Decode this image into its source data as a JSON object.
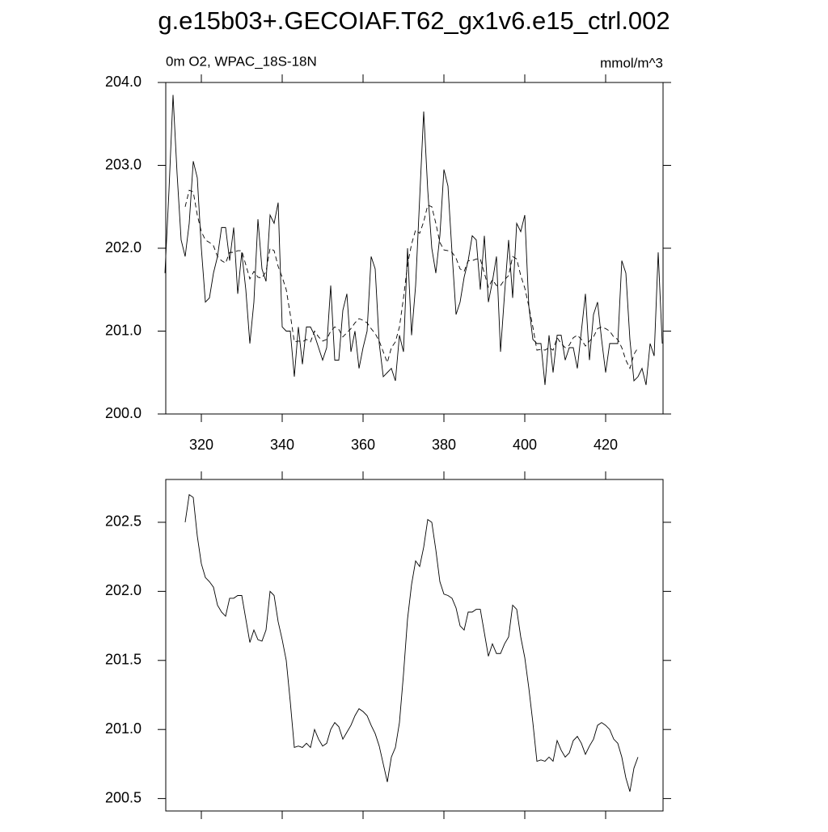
{
  "chart_data": [
    {
      "type": "line",
      "title": "g.e15b03+.GECOIAF.T62_gx1v6.e15_ctrl.002",
      "subtitle_left": "0m O2, WPAC_18S-18N",
      "subtitle_right": "mmol/m^3",
      "xlim": [
        311.2,
        434.2
      ],
      "xticks": [
        320,
        340,
        360,
        380,
        400,
        420
      ],
      "xtick_labels": true,
      "ylim": [
        200,
        204
      ],
      "yticks": [
        {
          "value": 200,
          "label": "200.0"
        },
        {
          "value": 201,
          "label": "201.0"
        },
        {
          "value": 202,
          "label": "202.0"
        },
        {
          "value": 203,
          "label": "203.0"
        },
        {
          "value": 204,
          "label": "204.0"
        }
      ],
      "series": [
        {
          "color": "#000000",
          "linestyle": "solid",
          "x": [
            311,
            312,
            313,
            314,
            315,
            316,
            317,
            318,
            319,
            320,
            321,
            322,
            323,
            324,
            325,
            326,
            327,
            328,
            329,
            330,
            331,
            332,
            333,
            334,
            335,
            336,
            337,
            338,
            339,
            340,
            341,
            342,
            343,
            344,
            345,
            346,
            347,
            348,
            349,
            350,
            351,
            352,
            353,
            354,
            355,
            356,
            357,
            358,
            359,
            360,
            361,
            362,
            363,
            364,
            365,
            366,
            367,
            368,
            369,
            370,
            371,
            372,
            373,
            374,
            375,
            376,
            377,
            378,
            379,
            380,
            381,
            382,
            383,
            384,
            385,
            386,
            387,
            388,
            389,
            390,
            391,
            392,
            393,
            394,
            395,
            396,
            397,
            398,
            399,
            400,
            401,
            402,
            403,
            404,
            405,
            406,
            407,
            408,
            409,
            410,
            411,
            412,
            413,
            414,
            415,
            416,
            417,
            418,
            419,
            420,
            421,
            422,
            423,
            424,
            425,
            426,
            427,
            428,
            429,
            430,
            431,
            432,
            433,
            434
          ],
          "values": [
            201.7,
            202.7,
            203.85,
            202.9,
            202.1,
            201.9,
            202.3,
            203.05,
            202.85,
            202.0,
            201.35,
            201.4,
            201.7,
            201.9,
            202.25,
            202.25,
            201.85,
            202.25,
            201.45,
            201.95,
            201.5,
            200.85,
            201.35,
            202.35,
            201.75,
            201.6,
            202.4,
            202.3,
            202.55,
            201.05,
            201.0,
            201.0,
            200.45,
            201.05,
            200.6,
            201.05,
            201.05,
            200.95,
            200.8,
            200.65,
            200.8,
            201.55,
            200.65,
            200.65,
            201.25,
            201.45,
            200.75,
            201.0,
            200.55,
            200.8,
            201.0,
            201.9,
            201.75,
            200.85,
            200.45,
            200.5,
            200.55,
            200.4,
            200.95,
            200.75,
            202.0,
            200.95,
            201.55,
            202.6,
            203.65,
            202.7,
            202.0,
            201.7,
            202.15,
            202.95,
            202.75,
            201.95,
            201.2,
            201.35,
            201.65,
            201.85,
            202.15,
            202.1,
            201.5,
            202.15,
            201.35,
            201.6,
            201.9,
            200.75,
            201.45,
            202.1,
            201.4,
            202.3,
            202.2,
            202.4,
            201.3,
            200.9,
            200.85,
            200.85,
            200.35,
            200.95,
            200.5,
            200.95,
            200.95,
            200.65,
            200.8,
            200.8,
            200.55,
            201.0,
            201.45,
            200.65,
            201.2,
            201.35,
            200.9,
            200.5,
            200.85,
            200.85,
            200.85,
            201.85,
            201.7,
            200.9,
            200.4,
            200.45,
            200.55,
            200.35,
            200.85,
            200.7,
            201.95,
            200.85
          ]
        },
        {
          "color": "#000000",
          "linestyle": "dashed",
          "x": [
            316,
            317,
            318,
            319,
            320,
            321,
            322,
            323,
            324,
            325,
            326,
            327,
            328,
            329,
            330,
            331,
            332,
            333,
            334,
            335,
            336,
            337,
            338,
            339,
            340,
            341,
            342,
            343,
            344,
            345,
            346,
            347,
            348,
            349,
            350,
            351,
            352,
            353,
            354,
            355,
            356,
            357,
            358,
            359,
            360,
            361,
            362,
            363,
            364,
            365,
            366,
            367,
            368,
            369,
            370,
            371,
            372,
            373,
            374,
            375,
            376,
            377,
            378,
            379,
            380,
            381,
            382,
            383,
            384,
            385,
            386,
            387,
            388,
            389,
            390,
            391,
            392,
            393,
            394,
            395,
            396,
            397,
            398,
            399,
            400,
            401,
            402,
            403,
            404,
            405,
            406,
            407,
            408,
            409,
            410,
            411,
            412,
            413,
            414,
            415,
            416,
            417,
            418,
            419,
            420,
            421,
            422,
            423,
            424,
            425,
            426,
            427,
            428
          ],
          "values": [
            202.5,
            202.7,
            202.68,
            202.4,
            202.2,
            202.1,
            202.07,
            202.03,
            201.9,
            201.85,
            201.82,
            201.95,
            201.95,
            201.97,
            201.97,
            201.8,
            201.63,
            201.72,
            201.65,
            201.64,
            201.72,
            202.0,
            201.97,
            201.78,
            201.65,
            201.5,
            201.2,
            200.87,
            200.88,
            200.87,
            200.9,
            200.87,
            201.0,
            200.93,
            200.88,
            200.9,
            201.0,
            201.05,
            201.02,
            200.93,
            200.98,
            201.03,
            201.1,
            201.15,
            201.13,
            201.1,
            201.03,
            200.97,
            200.88,
            200.75,
            200.62,
            200.8,
            200.87,
            201.05,
            201.4,
            201.8,
            202.05,
            202.22,
            202.18,
            202.32,
            202.52,
            202.5,
            202.3,
            202.07,
            201.98,
            201.97,
            201.95,
            201.88,
            201.75,
            201.72,
            201.85,
            201.85,
            201.87,
            201.87,
            201.7,
            201.53,
            201.62,
            201.55,
            201.55,
            201.62,
            201.67,
            201.9,
            201.87,
            201.67,
            201.52,
            201.3,
            201.05,
            200.77,
            200.78,
            200.77,
            200.8,
            200.77,
            200.92,
            200.85,
            200.8,
            200.83,
            200.92,
            200.95,
            200.9,
            200.82,
            200.88,
            200.93,
            201.03,
            201.05,
            201.03,
            201.0,
            200.93,
            200.9,
            200.8,
            200.65,
            200.55,
            200.72,
            200.8
          ]
        }
      ]
    },
    {
      "type": "line",
      "xlim": [
        311.2,
        434.2
      ],
      "xticks": [
        320,
        340,
        360,
        380,
        400,
        420
      ],
      "xtick_labels": false,
      "ylim": [
        200.41,
        202.81
      ],
      "yticks": [
        200.5,
        {
          "value": 201,
          "label": "201.0"
        },
        201.5,
        {
          "value": 202,
          "label": "202.0"
        },
        202.5
      ],
      "series": [
        {
          "color": "#000000",
          "linestyle": "solid",
          "x": [
            316,
            317,
            318,
            319,
            320,
            321,
            322,
            323,
            324,
            325,
            326,
            327,
            328,
            329,
            330,
            331,
            332,
            333,
            334,
            335,
            336,
            337,
            338,
            339,
            340,
            341,
            342,
            343,
            344,
            345,
            346,
            347,
            348,
            349,
            350,
            351,
            352,
            353,
            354,
            355,
            356,
            357,
            358,
            359,
            360,
            361,
            362,
            363,
            364,
            365,
            366,
            367,
            368,
            369,
            370,
            371,
            372,
            373,
            374,
            375,
            376,
            377,
            378,
            379,
            380,
            381,
            382,
            383,
            384,
            385,
            386,
            387,
            388,
            389,
            390,
            391,
            392,
            393,
            394,
            395,
            396,
            397,
            398,
            399,
            400,
            401,
            402,
            403,
            404,
            405,
            406,
            407,
            408,
            409,
            410,
            411,
            412,
            413,
            414,
            415,
            416,
            417,
            418,
            419,
            420,
            421,
            422,
            423,
            424,
            425,
            426,
            427,
            428
          ],
          "values": [
            202.5,
            202.7,
            202.68,
            202.4,
            202.2,
            202.1,
            202.07,
            202.03,
            201.9,
            201.85,
            201.82,
            201.95,
            201.95,
            201.97,
            201.97,
            201.8,
            201.63,
            201.72,
            201.65,
            201.64,
            201.72,
            202.0,
            201.97,
            201.78,
            201.65,
            201.5,
            201.2,
            200.87,
            200.88,
            200.87,
            200.9,
            200.87,
            201.0,
            200.93,
            200.88,
            200.9,
            201.0,
            201.05,
            201.02,
            200.93,
            200.98,
            201.03,
            201.1,
            201.15,
            201.13,
            201.1,
            201.03,
            200.97,
            200.88,
            200.75,
            200.62,
            200.8,
            200.87,
            201.05,
            201.4,
            201.8,
            202.05,
            202.22,
            202.18,
            202.32,
            202.52,
            202.5,
            202.3,
            202.07,
            201.98,
            201.97,
            201.95,
            201.88,
            201.75,
            201.72,
            201.85,
            201.85,
            201.87,
            201.87,
            201.7,
            201.53,
            201.62,
            201.55,
            201.55,
            201.62,
            201.67,
            201.9,
            201.87,
            201.67,
            201.52,
            201.3,
            201.05,
            200.77,
            200.78,
            200.77,
            200.8,
            200.77,
            200.92,
            200.85,
            200.8,
            200.83,
            200.92,
            200.95,
            200.9,
            200.82,
            200.88,
            200.93,
            201.03,
            201.05,
            201.03,
            201.0,
            200.93,
            200.9,
            200.8,
            200.65,
            200.55,
            200.72,
            200.8
          ]
        }
      ]
    }
  ]
}
